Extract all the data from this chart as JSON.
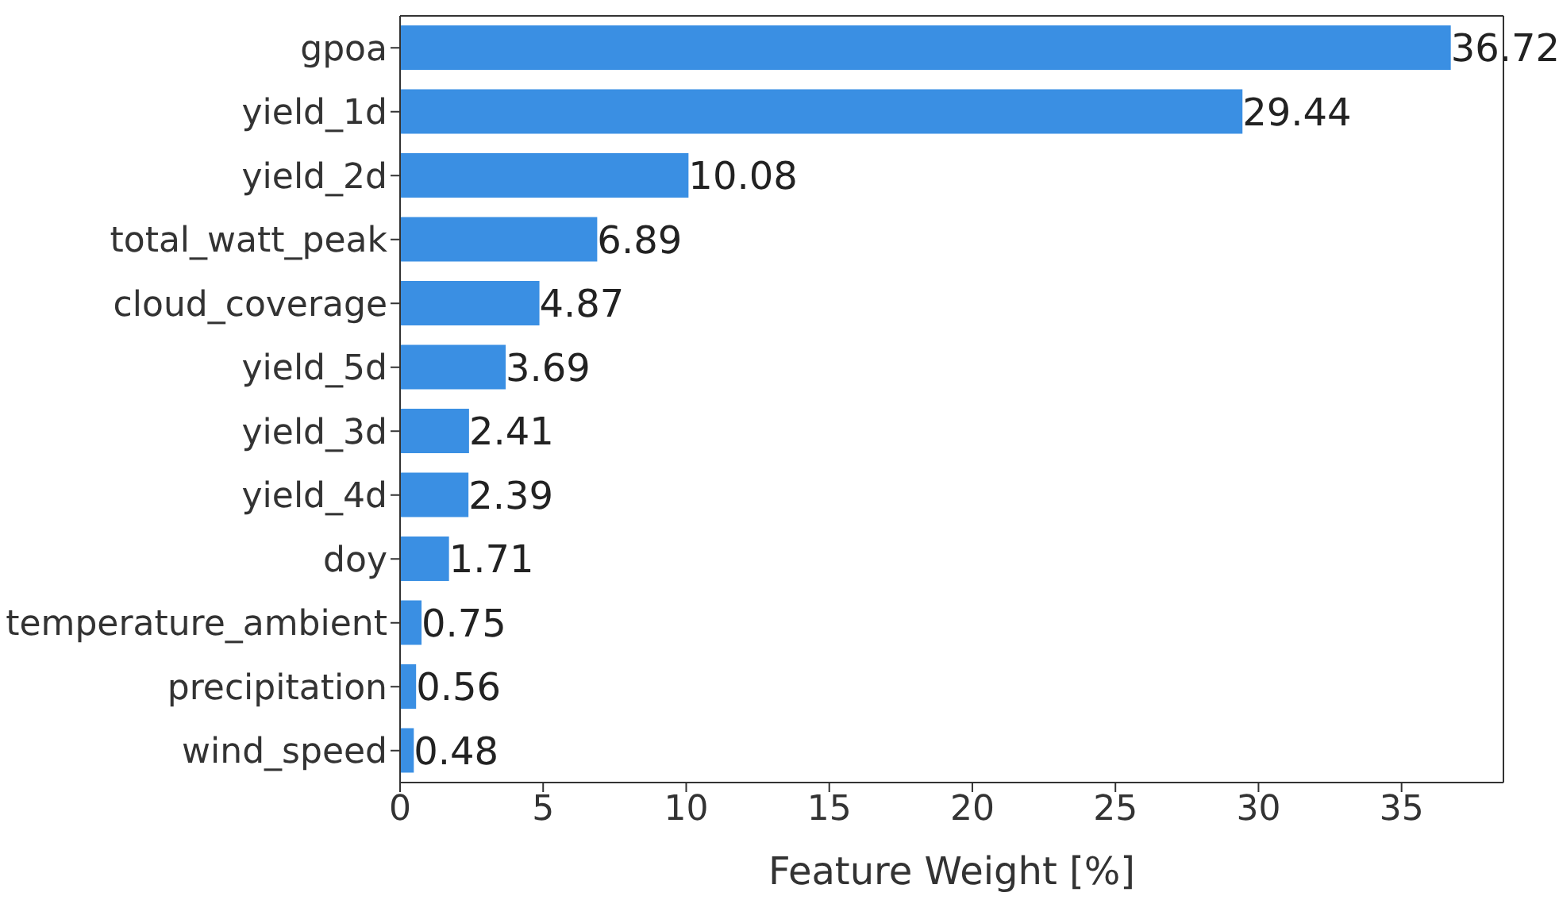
{
  "chart_data": {
    "type": "bar",
    "orientation": "horizontal",
    "xlabel": "Feature Weight [%]",
    "categories": [
      "gpoa",
      "yield_1d",
      "yield_2d",
      "total_watt_peak",
      "cloud_coverage",
      "yield_5d",
      "yield_3d",
      "yield_4d",
      "doy",
      "temperature_ambient",
      "precipitation",
      "wind_speed"
    ],
    "values": [
      36.72,
      29.44,
      10.08,
      6.89,
      4.87,
      3.69,
      2.41,
      2.39,
      1.71,
      0.75,
      0.56,
      0.48
    ],
    "color": "#3a8fe3",
    "xlim": [
      0,
      38.56
    ],
    "xticks": [
      0,
      5,
      10,
      15,
      20,
      25,
      30,
      35
    ],
    "grid": false,
    "data_labels": true
  }
}
